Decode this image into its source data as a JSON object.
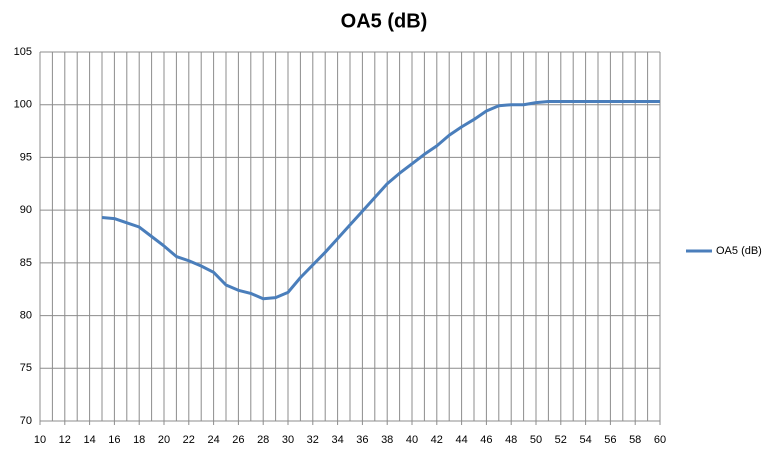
{
  "chart_data": {
    "type": "line",
    "title": "OA5 (dB)",
    "x": [
      15,
      16,
      17,
      18,
      19,
      20,
      21,
      22,
      23,
      24,
      25,
      26,
      27,
      28,
      29,
      30,
      31,
      32,
      33,
      34,
      35,
      36,
      37,
      38,
      39,
      40,
      41,
      42,
      43,
      44,
      45,
      46,
      47,
      48,
      49,
      50,
      51,
      52,
      53,
      54,
      55,
      56,
      57,
      58,
      59,
      60
    ],
    "series": [
      {
        "name": "OA5 (dB)",
        "color": "#4a7ebb",
        "values": [
          89.3,
          89.2,
          88.8,
          88.4,
          87.5,
          86.6,
          85.6,
          85.2,
          84.7,
          84.1,
          82.9,
          82.4,
          82.1,
          81.6,
          81.7,
          82.2,
          83.6,
          84.8,
          86.0,
          87.3,
          88.6,
          89.9,
          91.2,
          92.5,
          93.5,
          94.4,
          95.3,
          96.1,
          97.1,
          97.9,
          98.6,
          99.4,
          99.9,
          100.0,
          100.0,
          100.2,
          100.3,
          100.3,
          100.3,
          100.3,
          100.3,
          100.3,
          100.3,
          100.3,
          100.3,
          100.3
        ]
      }
    ],
    "xlim": [
      10,
      60
    ],
    "xticks": [
      10,
      12,
      14,
      16,
      18,
      20,
      22,
      24,
      26,
      28,
      30,
      32,
      34,
      36,
      38,
      40,
      42,
      44,
      46,
      48,
      50,
      52,
      54,
      56,
      58,
      60
    ],
    "xgrid_step": 1,
    "ylim": [
      70,
      105
    ],
    "yticks": [
      70,
      75,
      80,
      85,
      90,
      95,
      100,
      105
    ],
    "grid": true,
    "legend": "right"
  }
}
